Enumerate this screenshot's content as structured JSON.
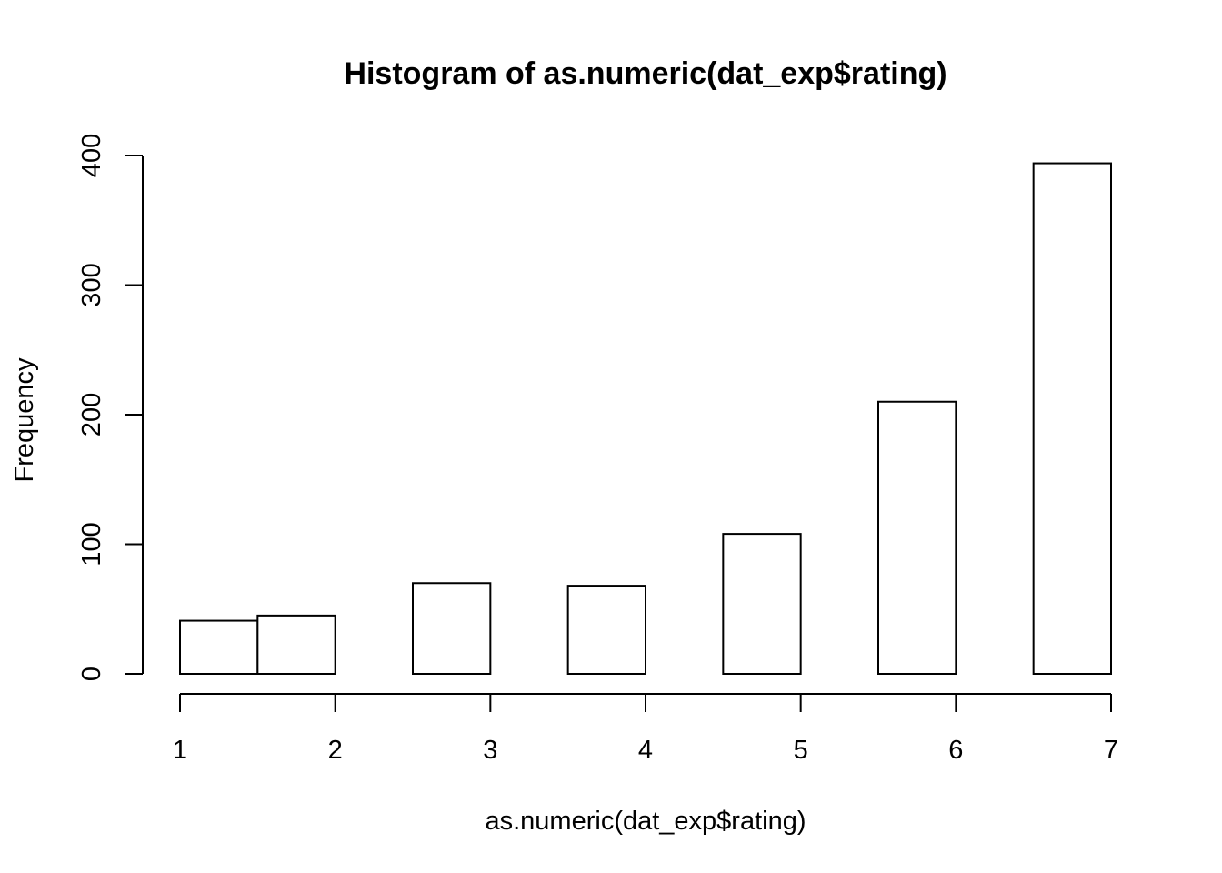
{
  "chart_data": {
    "type": "bar",
    "title": "Histogram of as.numeric(dat_exp$rating)",
    "xlabel": "as.numeric(dat_exp$rating)",
    "ylabel": "Frequency",
    "bins": [
      {
        "start": 1.0,
        "end": 1.5,
        "count": 41
      },
      {
        "start": 1.5,
        "end": 2.0,
        "count": 45
      },
      {
        "start": 2.0,
        "end": 2.5,
        "count": 0
      },
      {
        "start": 2.5,
        "end": 3.0,
        "count": 70
      },
      {
        "start": 3.0,
        "end": 3.5,
        "count": 0
      },
      {
        "start": 3.5,
        "end": 4.0,
        "count": 68
      },
      {
        "start": 4.0,
        "end": 4.5,
        "count": 0
      },
      {
        "start": 4.5,
        "end": 5.0,
        "count": 108
      },
      {
        "start": 5.0,
        "end": 5.5,
        "count": 0
      },
      {
        "start": 5.5,
        "end": 6.0,
        "count": 210
      },
      {
        "start": 6.0,
        "end": 6.5,
        "count": 0
      },
      {
        "start": 6.5,
        "end": 7.0,
        "count": 394
      }
    ],
    "xlim": [
      1,
      7
    ],
    "ylim": [
      0,
      400
    ],
    "x_ticks": [
      "1",
      "2",
      "3",
      "4",
      "5",
      "6",
      "7"
    ],
    "y_ticks": [
      "0",
      "100",
      "200",
      "300",
      "400"
    ],
    "grid": false,
    "bar_fill": "#ffffff",
    "bar_stroke": "#000000"
  }
}
